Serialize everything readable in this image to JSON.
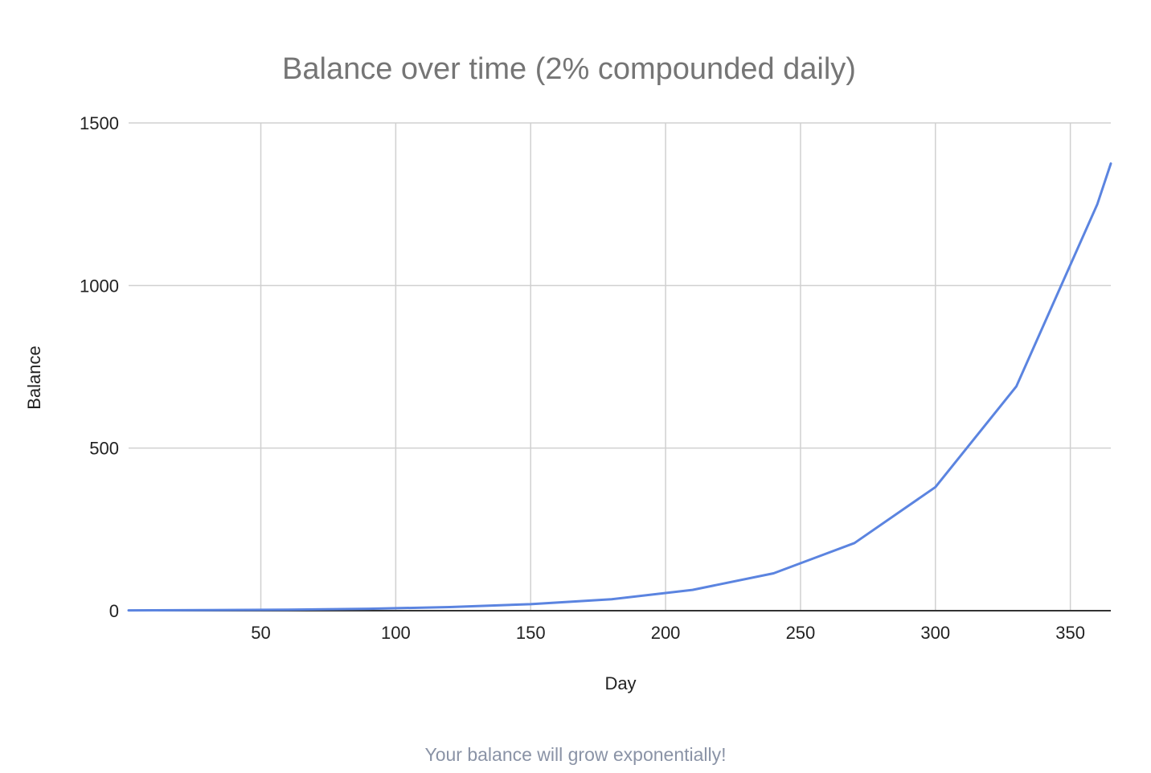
{
  "caption": "Your balance will grow exponentially!",
  "chart_data": {
    "type": "line",
    "title": "Balance over time (2% compounded daily)",
    "xlabel": "Day",
    "ylabel": "Balance",
    "xlim": [
      1,
      365
    ],
    "ylim": [
      0,
      1500
    ],
    "x_ticks": [
      50,
      100,
      150,
      200,
      250,
      300,
      350
    ],
    "y_ticks": [
      0,
      500,
      1000,
      1500
    ],
    "grid": true,
    "legend": "none",
    "colors": {
      "line": "#5b84e0",
      "grid": "#d0d0d0",
      "baseline": "#333333"
    },
    "series": [
      {
        "x": [
          1,
          30,
          60,
          90,
          120,
          150,
          180,
          210,
          240,
          270,
          300,
          330,
          360,
          365
        ],
        "values": [
          1,
          2,
          3,
          6,
          11,
          20,
          35,
          64,
          115,
          208,
          380,
          690,
          1250,
          1375
        ]
      }
    ]
  }
}
